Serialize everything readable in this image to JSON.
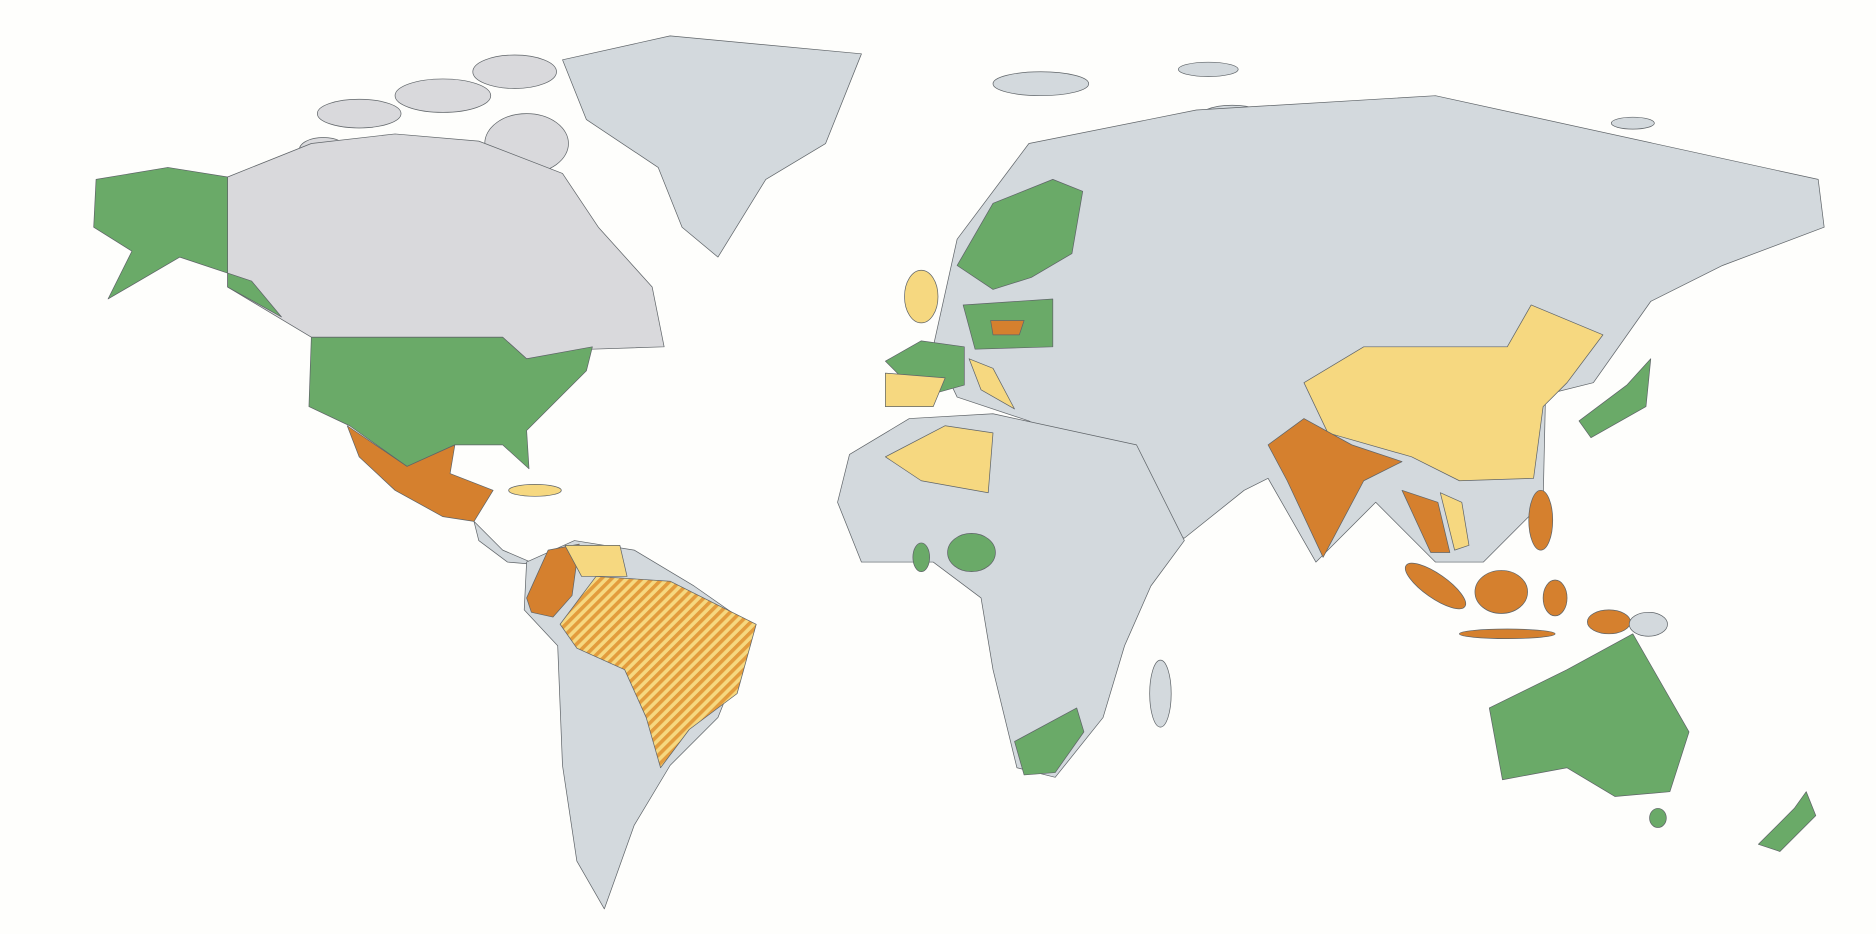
{
  "map": {
    "background_color": "#fefefc",
    "category_colors": {
      "green": "#6aaa68",
      "orange": "#d5802e",
      "yellow": "#f6d880",
      "hatched": [
        "#f6d880",
        "#e39c3c"
      ],
      "no_data": "#d3d9dd",
      "canada": "#d9d9dc"
    }
  }
}
